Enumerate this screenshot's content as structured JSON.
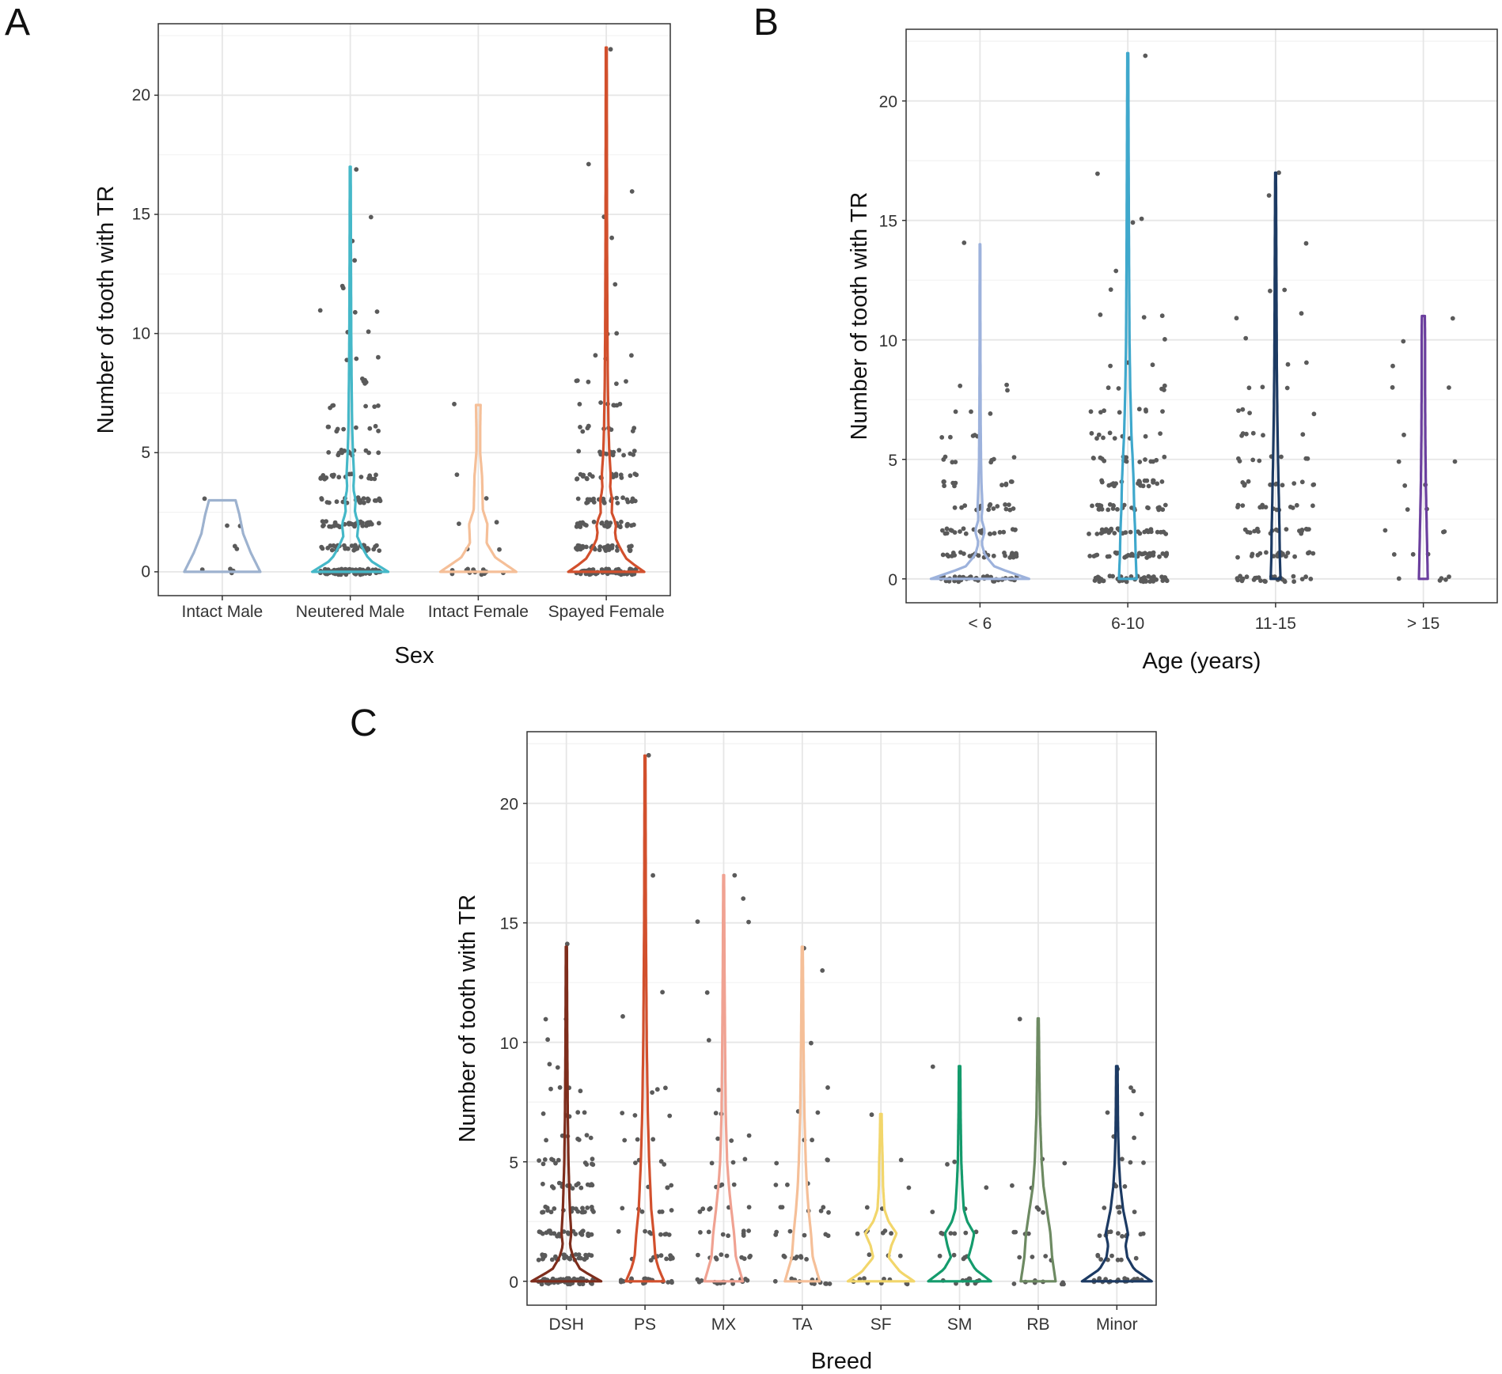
{
  "figure": {
    "panels": [
      {
        "id": "A",
        "label": "A"
      },
      {
        "id": "B",
        "label": "B"
      },
      {
        "id": "C",
        "label": "C"
      }
    ]
  },
  "chart_data": [
    {
      "panel": "A",
      "type": "violin",
      "title": "",
      "xlabel": "Sex",
      "ylabel": "Number of tooth with TR",
      "ylim": [
        -1,
        23
      ],
      "yticks": [
        0,
        5,
        10,
        15,
        20
      ],
      "grid": true,
      "categories": [
        "Intact Male",
        "Neutered Male",
        "Intact Female",
        "Spayed Female"
      ],
      "series": [
        {
          "name": "Intact Male",
          "color": "#9db2cf",
          "max": 3,
          "profile": [
            [
              0,
              1.0
            ],
            [
              0.8,
              0.75
            ],
            [
              1.6,
              0.55
            ],
            [
              2.4,
              0.45
            ],
            [
              3,
              0.35
            ]
          ],
          "points": {
            "0": 4,
            "1": 2,
            "2": 2,
            "3": 1
          }
        },
        {
          "name": "Neutered Male",
          "color": "#45b8c8",
          "max": 17,
          "profile": [
            [
              0,
              1.0
            ],
            [
              0.5,
              0.5
            ],
            [
              1,
              0.32
            ],
            [
              1.5,
              0.18
            ],
            [
              2,
              0.22
            ],
            [
              2.5,
              0.12
            ],
            [
              3,
              0.14
            ],
            [
              3.5,
              0.08
            ],
            [
              4,
              0.1
            ],
            [
              5,
              0.07
            ],
            [
              6,
              0.05
            ],
            [
              8,
              0.035
            ],
            [
              10,
              0.025
            ],
            [
              13,
              0.018
            ],
            [
              17,
              0.012
            ]
          ],
          "points": {
            "0": 80,
            "1": 38,
            "2": 32,
            "3": 24,
            "4": 20,
            "5": 14,
            "6": 9,
            "7": 6,
            "8": 5,
            "9": 3,
            "10": 2,
            "11": 3,
            "12": 2,
            "13": 1,
            "14": 1,
            "15": 1,
            "17": 1
          }
        },
        {
          "name": "Intact Female",
          "color": "#f5bf98",
          "max": 7,
          "profile": [
            [
              0,
              1.0
            ],
            [
              0.6,
              0.45
            ],
            [
              1.2,
              0.22
            ],
            [
              2,
              0.24
            ],
            [
              2.6,
              0.12
            ],
            [
              4,
              0.1
            ],
            [
              5,
              0.05
            ],
            [
              6,
              0.05
            ],
            [
              7,
              0.06
            ]
          ],
          "points": {
            "0": 12,
            "1": 2,
            "2": 2,
            "3": 1,
            "4": 1,
            "7": 1
          }
        },
        {
          "name": "Spayed Female",
          "color": "#d2502d",
          "max": 22,
          "profile": [
            [
              0,
              1.0
            ],
            [
              0.5,
              0.55
            ],
            [
              1,
              0.36
            ],
            [
              1.5,
              0.22
            ],
            [
              2,
              0.26
            ],
            [
              2.5,
              0.14
            ],
            [
              3,
              0.16
            ],
            [
              3.5,
              0.1
            ],
            [
              4,
              0.12
            ],
            [
              5,
              0.08
            ],
            [
              6,
              0.06
            ],
            [
              8,
              0.04
            ],
            [
              10,
              0.03
            ],
            [
              14,
              0.02
            ],
            [
              18,
              0.016
            ],
            [
              22,
              0.012
            ]
          ],
          "points": {
            "0": 75,
            "1": 34,
            "2": 30,
            "3": 24,
            "4": 20,
            "5": 14,
            "6": 10,
            "7": 7,
            "8": 5,
            "9": 3,
            "10": 2,
            "12": 1,
            "14": 1,
            "15": 1,
            "16": 1,
            "17": 1,
            "22": 1
          }
        }
      ]
    },
    {
      "panel": "B",
      "type": "violin",
      "title": "",
      "xlabel": "Age (years)",
      "ylabel": "Number of tooth with TR",
      "ylim": [
        -1,
        23
      ],
      "yticks": [
        0,
        5,
        10,
        15,
        20
      ],
      "grid": true,
      "categories": [
        "< 6",
        "6-10",
        "11-15",
        "> 15"
      ],
      "series": [
        {
          "name": "< 6",
          "color": "#9db2dc",
          "max": 14,
          "profile": [
            [
              0,
              1.0
            ],
            [
              0.5,
              0.3
            ],
            [
              1,
              0.1
            ],
            [
              1.5,
              0.03
            ],
            [
              2,
              0.1
            ],
            [
              2.5,
              0.03
            ],
            [
              3,
              0.05
            ],
            [
              4,
              0.03
            ],
            [
              5,
              0.02
            ],
            [
              7,
              0.012
            ],
            [
              10,
              0.008
            ],
            [
              14,
              0.006
            ]
          ],
          "points": {
            "0": 45,
            "1": 28,
            "2": 24,
            "3": 16,
            "4": 12,
            "5": 8,
            "6": 5,
            "7": 3,
            "8": 3,
            "14": 1
          }
        },
        {
          "name": "6-10",
          "color": "#3fa8cc",
          "max": 22,
          "profile": [
            [
              0,
              0.18
            ],
            [
              1,
              0.16
            ],
            [
              2,
              0.15
            ],
            [
              3,
              0.13
            ],
            [
              4,
              0.12
            ],
            [
              5,
              0.1
            ],
            [
              6,
              0.075
            ],
            [
              8,
              0.05
            ],
            [
              10,
              0.035
            ],
            [
              14,
              0.024
            ],
            [
              18,
              0.016
            ],
            [
              22,
              0.01
            ]
          ],
          "points": {
            "0": 50,
            "1": 36,
            "2": 32,
            "3": 26,
            "4": 22,
            "5": 15,
            "6": 10,
            "7": 8,
            "8": 5,
            "9": 3,
            "10": 1,
            "11": 3,
            "12": 1,
            "13": 1,
            "15": 2,
            "17": 1,
            "22": 1
          }
        },
        {
          "name": "11-15",
          "color": "#1c3a63",
          "max": 17,
          "profile": [
            [
              0,
              0.1
            ],
            [
              1,
              0.085
            ],
            [
              2,
              0.08
            ],
            [
              3,
              0.07
            ],
            [
              4,
              0.06
            ],
            [
              5,
              0.05
            ],
            [
              7,
              0.035
            ],
            [
              9,
              0.025
            ],
            [
              12,
              0.018
            ],
            [
              15,
              0.012
            ],
            [
              17,
              0.008
            ]
          ],
          "points": {
            "0": 30,
            "1": 20,
            "2": 18,
            "3": 14,
            "4": 12,
            "5": 8,
            "6": 6,
            "7": 4,
            "8": 3,
            "9": 2,
            "10": 1,
            "11": 2,
            "12": 2,
            "14": 1,
            "16": 1,
            "17": 1
          }
        },
        {
          "name": "> 15",
          "color": "#6b3f9e",
          "max": 11,
          "profile": [
            [
              0,
              0.09
            ],
            [
              2,
              0.07
            ],
            [
              4,
              0.05
            ],
            [
              6,
              0.04
            ],
            [
              8,
              0.035
            ],
            [
              10,
              0.035
            ],
            [
              11,
              0.03
            ]
          ],
          "points": {
            "0": 5,
            "1": 3,
            "2": 3,
            "3": 2,
            "4": 2,
            "5": 2,
            "6": 1,
            "8": 2,
            "9": 1,
            "10": 1,
            "11": 1
          }
        }
      ]
    },
    {
      "panel": "C",
      "type": "violin",
      "title": "",
      "xlabel": "Breed",
      "ylabel": "Number of tooth with TR",
      "ylim": [
        -1,
        23
      ],
      "yticks": [
        0,
        5,
        10,
        15,
        20
      ],
      "grid": true,
      "categories": [
        "DSH",
        "PS",
        "MX",
        "TA",
        "SF",
        "SM",
        "RB",
        "Minor"
      ],
      "series": [
        {
          "name": "DSH",
          "color": "#7e2d1c",
          "max": 14,
          "profile": [
            [
              0,
              1.0
            ],
            [
              0.5,
              0.4
            ],
            [
              1,
              0.2
            ],
            [
              1.5,
              0.1
            ],
            [
              2,
              0.14
            ],
            [
              3,
              0.1
            ],
            [
              4,
              0.08
            ],
            [
              5,
              0.06
            ],
            [
              7,
              0.04
            ],
            [
              10,
              0.025
            ],
            [
              14,
              0.015
            ]
          ],
          "points": {
            "0": 60,
            "1": 30,
            "2": 26,
            "3": 20,
            "4": 16,
            "5": 12,
            "6": 7,
            "7": 5,
            "8": 4,
            "9": 2,
            "10": 1,
            "11": 2,
            "14": 1
          }
        },
        {
          "name": "PS",
          "color": "#d2502d",
          "max": 22,
          "profile": [
            [
              0,
              0.55
            ],
            [
              0.5,
              0.4
            ],
            [
              1,
              0.3
            ],
            [
              2,
              0.25
            ],
            [
              3,
              0.18
            ],
            [
              4,
              0.15
            ],
            [
              5,
              0.12
            ],
            [
              7,
              0.08
            ],
            [
              10,
              0.05
            ],
            [
              15,
              0.025
            ],
            [
              22,
              0.012
            ]
          ],
          "points": {
            "0": 18,
            "1": 10,
            "2": 8,
            "3": 6,
            "4": 4,
            "5": 4,
            "6": 3,
            "7": 3,
            "8": 3,
            "11": 1,
            "12": 1,
            "17": 1,
            "22": 1
          }
        },
        {
          "name": "MX",
          "color": "#f0a292",
          "max": 17,
          "profile": [
            [
              0,
              0.55
            ],
            [
              0.5,
              0.45
            ],
            [
              1,
              0.35
            ],
            [
              2,
              0.3
            ],
            [
              3,
              0.22
            ],
            [
              4,
              0.15
            ],
            [
              5,
              0.1
            ],
            [
              7,
              0.06
            ],
            [
              10,
              0.04
            ],
            [
              13,
              0.025
            ],
            [
              17,
              0.012
            ]
          ],
          "points": {
            "0": 16,
            "1": 10,
            "2": 8,
            "3": 6,
            "4": 4,
            "5": 3,
            "6": 3,
            "7": 2,
            "8": 1,
            "10": 1,
            "12": 1,
            "15": 2,
            "16": 1,
            "17": 1
          }
        },
        {
          "name": "TA",
          "color": "#f5bf98",
          "max": 14,
          "profile": [
            [
              0,
              0.5
            ],
            [
              0.5,
              0.4
            ],
            [
              1,
              0.3
            ],
            [
              2,
              0.25
            ],
            [
              3,
              0.18
            ],
            [
              4,
              0.13
            ],
            [
              5,
              0.1
            ],
            [
              7,
              0.06
            ],
            [
              10,
              0.035
            ],
            [
              14,
              0.015
            ]
          ],
          "points": {
            "0": 14,
            "1": 8,
            "2": 6,
            "3": 6,
            "4": 3,
            "5": 3,
            "6": 2,
            "7": 2,
            "8": 1,
            "10": 1,
            "13": 1,
            "14": 1
          }
        },
        {
          "name": "SF",
          "color": "#f2d66b",
          "max": 7,
          "profile": [
            [
              0,
              0.95
            ],
            [
              0.4,
              0.55
            ],
            [
              1,
              0.22
            ],
            [
              1.5,
              0.3
            ],
            [
              2,
              0.45
            ],
            [
              2.5,
              0.22
            ],
            [
              3,
              0.1
            ],
            [
              4,
              0.06
            ],
            [
              5,
              0.05
            ],
            [
              6,
              0.03
            ],
            [
              7,
              0.02
            ]
          ],
          "points": {
            "0": 10,
            "1": 3,
            "2": 6,
            "3": 2,
            "4": 1,
            "5": 1,
            "7": 1
          }
        },
        {
          "name": "SM",
          "color": "#149b6c",
          "max": 9,
          "profile": [
            [
              0,
              0.9
            ],
            [
              0.5,
              0.45
            ],
            [
              1,
              0.25
            ],
            [
              1.5,
              0.35
            ],
            [
              2,
              0.42
            ],
            [
              2.5,
              0.22
            ],
            [
              3,
              0.12
            ],
            [
              4,
              0.08
            ],
            [
              5,
              0.05
            ],
            [
              7,
              0.03
            ],
            [
              9,
              0.02
            ]
          ],
          "points": {
            "0": 10,
            "1": 5,
            "2": 6,
            "3": 2,
            "4": 1,
            "5": 2,
            "9": 1
          }
        },
        {
          "name": "RB",
          "color": "#6d8a62",
          "max": 11,
          "profile": [
            [
              0,
              0.5
            ],
            [
              0.5,
              0.45
            ],
            [
              1,
              0.4
            ],
            [
              2,
              0.35
            ],
            [
              3,
              0.25
            ],
            [
              4,
              0.15
            ],
            [
              5,
              0.1
            ],
            [
              7,
              0.05
            ],
            [
              9,
              0.03
            ],
            [
              11,
              0.015
            ]
          ],
          "points": {
            "0": 8,
            "1": 4,
            "2": 4,
            "3": 3,
            "4": 2,
            "5": 2,
            "11": 1
          }
        },
        {
          "name": "Minor",
          "color": "#1c3a63",
          "max": 9,
          "profile": [
            [
              0,
              1.0
            ],
            [
              0.5,
              0.5
            ],
            [
              1,
              0.3
            ],
            [
              1.5,
              0.25
            ],
            [
              2,
              0.32
            ],
            [
              3,
              0.18
            ],
            [
              4,
              0.1
            ],
            [
              5,
              0.06
            ],
            [
              6,
              0.04
            ],
            [
              7,
              0.03
            ],
            [
              9,
              0.02
            ]
          ],
          "points": {
            "0": 20,
            "1": 8,
            "2": 10,
            "3": 5,
            "4": 3,
            "5": 3,
            "6": 2,
            "7": 2,
            "8": 2,
            "9": 1
          }
        }
      ]
    }
  ]
}
